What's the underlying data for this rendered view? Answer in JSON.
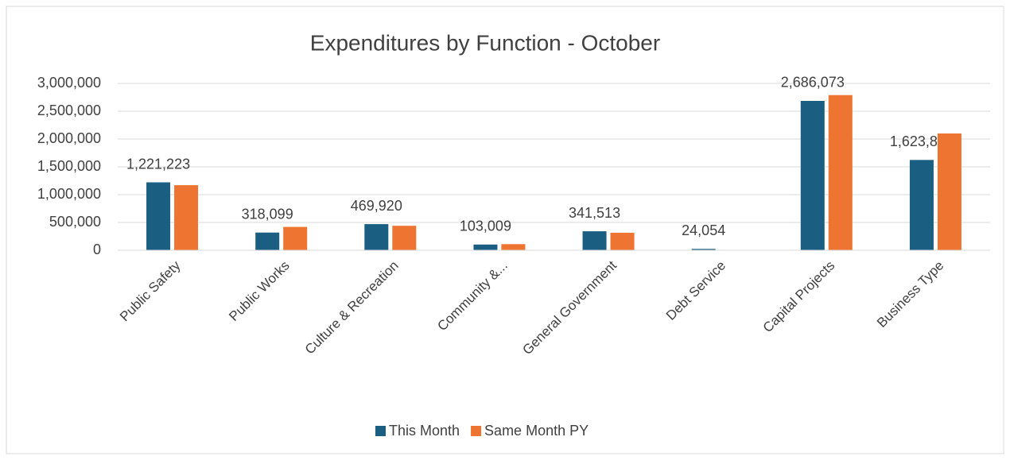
{
  "chart_data": {
    "type": "bar",
    "title": "Expenditures by Function - October",
    "categories": [
      "Public Safety",
      "Public Works",
      "Culture & Recreation",
      "Community &...",
      "General Government",
      "Debt Service",
      "Capital Projects",
      "Business Type"
    ],
    "series": [
      {
        "name": "This Month",
        "color": "#1a5f82",
        "values": [
          1221223,
          318099,
          469920,
          103009,
          341513,
          24054,
          2686073,
          1623802
        ],
        "value_labels": [
          "1,221,223",
          "318,099",
          "469,920",
          "103,009",
          "341,513",
          "24,054",
          "2,686,073",
          "1,623,802"
        ]
      },
      {
        "name": "Same Month PY",
        "color": "#ed7431",
        "values": [
          1170000,
          420000,
          440000,
          110000,
          315000,
          0,
          2790000,
          2100000
        ]
      }
    ],
    "ylim": [
      0,
      3000000
    ],
    "yticks": [
      0,
      {
        "value": 500000,
        "label": "500,000"
      },
      {
        "value": 1000000,
        "label": "1,000,000"
      },
      {
        "value": 1500000,
        "label": "1,500,000"
      },
      {
        "value": 2000000,
        "label": "2,000,000"
      },
      {
        "value": 2500000,
        "label": "2,500,000"
      },
      {
        "value": 3000000,
        "label": "3,000,000"
      }
    ],
    "grid": true,
    "legend": "bottom"
  }
}
